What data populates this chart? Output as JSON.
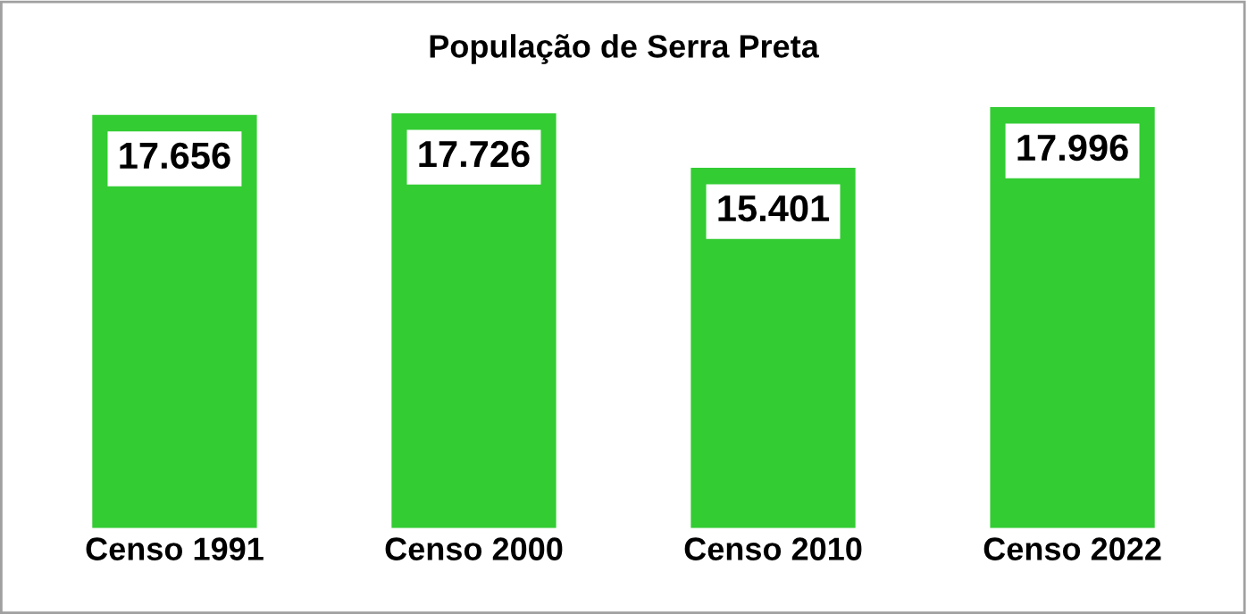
{
  "chart_data": {
    "type": "bar",
    "title": "População de Serra Preta",
    "categories": [
      "Censo 1991",
      "Censo 2000",
      "Censo 2010",
      "Censo 2022"
    ],
    "values": [
      17656,
      17726,
      15401,
      17996
    ],
    "value_labels": [
      "17.656",
      "17.726",
      "15.401",
      "17.996"
    ],
    "color": "#33cc33",
    "tick_labels": "x",
    "grid": false,
    "legend": false
  }
}
